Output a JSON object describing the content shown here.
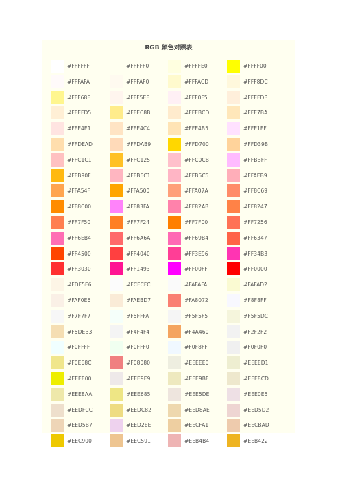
{
  "title": "RGB 颜色对照表",
  "colors": [
    [
      "#FFFFFF",
      "#FFFFF0",
      "#FFFFE0",
      "#FFFF00"
    ],
    [
      "#FFFAFA",
      "#FFFAF0",
      "#FFFACD",
      "#FFF8DC"
    ],
    [
      "#FFF68F",
      "#FFF5EE",
      "#FFF0F5",
      "#FFEFDB"
    ],
    [
      "#FFEFD5",
      "#FFEC8B",
      "#FFEBCD",
      "#FFE7BA"
    ],
    [
      "#FFE4E1",
      "#FFE4C4",
      "#FFE4B5",
      "#FFE1FF"
    ],
    [
      "#FFDEAD",
      "#FFDAB9",
      "#FFD700",
      "#FFD39B"
    ],
    [
      "#FFC1C1",
      "#FFC125",
      "#FFC0CB",
      "#FFBBFF"
    ],
    [
      "#FFB90F",
      "#FFB6C1",
      "#FFB5C5",
      "#FFAEB9"
    ],
    [
      "#FFA54F",
      "#FFA500",
      "#FFA07A",
      "#FF8C69"
    ],
    [
      "#FF8C00",
      "#FF83FA",
      "#FF82AB",
      "#FF8247"
    ],
    [
      "#FF7F50",
      "#FF7F24",
      "#FF7F00",
      "#FF7256"
    ],
    [
      "#FF6EB4",
      "#FF6A6A",
      "#FF69B4",
      "#FF6347"
    ],
    [
      "#FF4500",
      "#FF4040",
      "#FF3E96",
      "#FF34B3"
    ],
    [
      "#FF3030",
      "#FF1493",
      "#FF00FF",
      "#FF0000"
    ],
    [
      "#FDF5E6",
      "#FCFCFC",
      "#FAFAFA",
      "#FAFAD2"
    ],
    [
      "#FAF0E6",
      "#FAEBD7",
      "#FA8072",
      "#F8F8FF"
    ],
    [
      "#F7F7F7",
      "#F5FFFA",
      "#F5F5F5",
      "#F5F5DC"
    ],
    [
      "#F5DEB3",
      "#F4F4F4",
      "#F4A460",
      "#F2F2F2"
    ],
    [
      "#F0FFFF",
      "#F0FFF0",
      "#F0F8FF",
      "#F0F0F0"
    ],
    [
      "#F0E68C",
      "#F08080",
      "#EEEEE0",
      "#EEEED1"
    ],
    [
      "#EEEE00",
      "#EEE9E9",
      "#EEE9BF",
      "#EEE8CD"
    ],
    [
      "#EEE8AA",
      "#EEE685",
      "#EEE5DE",
      "#EEE0E5"
    ],
    [
      "#EEDFCC",
      "#EEDC82",
      "#EED8AE",
      "#EED5D2"
    ],
    [
      "#EED5B7",
      "#EED2EE",
      "#EECFA1",
      "#EECBAD"
    ],
    [
      "#EEC900",
      "#EEC591",
      "#EEB4B4",
      "#EEB422"
    ]
  ]
}
